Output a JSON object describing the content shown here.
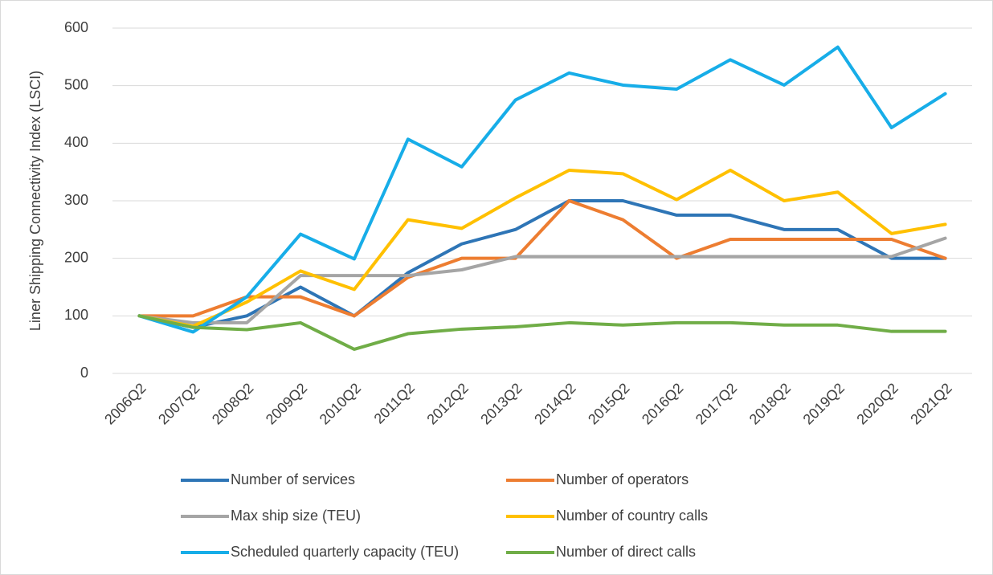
{
  "chart_data": {
    "type": "line",
    "y_label": "Liner Shipping Connectivity Index (LSCI)",
    "categories": [
      "2006Q2",
      "2007Q2",
      "2008Q2",
      "2009Q2",
      "2010Q2",
      "2011Q2",
      "2012Q2",
      "2013Q2",
      "2014Q2",
      "2015Q2",
      "2016Q2",
      "2017Q2",
      "2018Q2",
      "2019Q2",
      "2020Q2",
      "2021Q2"
    ],
    "series": [
      {
        "name": "Number of services",
        "color": "#2e75b6",
        "values": [
          100,
          80,
          100,
          150,
          100,
          175,
          225,
          250,
          300,
          300,
          275,
          275,
          250,
          250,
          200,
          200
        ]
      },
      {
        "name": "Number of operators",
        "color": "#ed7d31",
        "values": [
          100,
          100,
          133,
          133,
          100,
          167,
          200,
          200,
          300,
          267,
          200,
          233,
          233,
          233,
          233,
          200
        ]
      },
      {
        "name": "Max ship size (TEU)",
        "color": "#a5a5a5",
        "values": [
          100,
          88,
          88,
          170,
          170,
          170,
          180,
          203,
          203,
          203,
          203,
          203,
          203,
          203,
          203,
          235
        ]
      },
      {
        "name": "Number of country calls",
        "color": "#ffc000",
        "values": [
          100,
          82,
          124,
          178,
          146,
          267,
          252,
          305,
          353,
          347,
          302,
          353,
          300,
          315,
          243,
          259
        ]
      },
      {
        "name": "Scheduled quarterly capacity (TEU)",
        "color": "#17ade8",
        "values": [
          100,
          72,
          133,
          242,
          199,
          407,
          359,
          475,
          522,
          501,
          494,
          545,
          501,
          567,
          427,
          486
        ]
      },
      {
        "name": "Number of direct calls",
        "color": "#70ad47",
        "values": [
          100,
          80,
          76,
          88,
          42,
          69,
          77,
          81,
          88,
          84,
          88,
          88,
          84,
          84,
          73,
          73
        ]
      }
    ],
    "ylim": [
      0,
      600
    ],
    "yticks": [
      0,
      100,
      200,
      300,
      400,
      500,
      600
    ],
    "grid": true,
    "legend": "bottom"
  }
}
